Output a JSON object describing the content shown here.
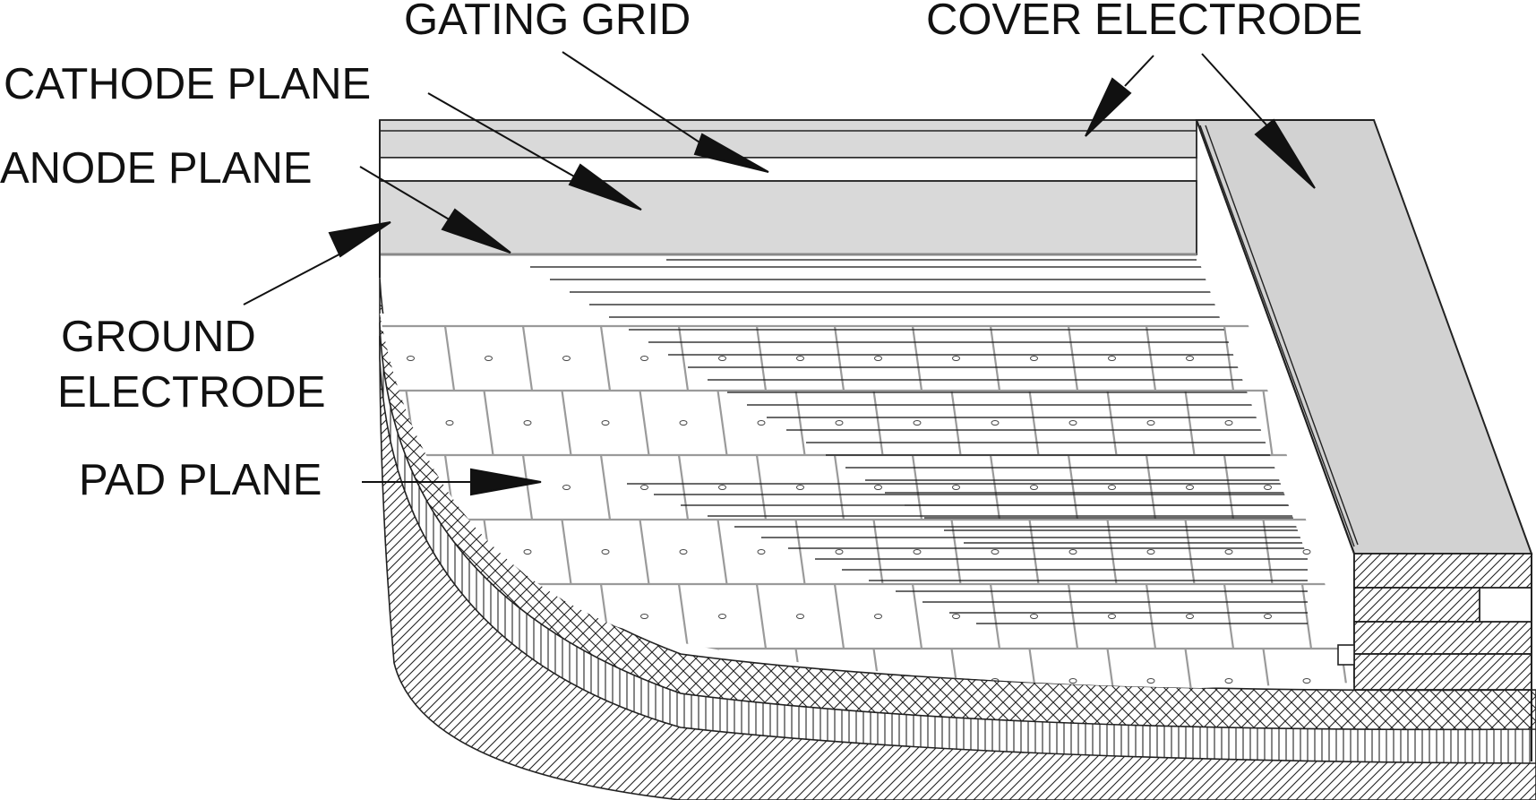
{
  "labels": {
    "gating_grid": "GATING GRID",
    "cover_electrode": "COVER ELECTRODE",
    "cathode_plane": "CATHODE PLANE",
    "anode_plane": "ANODE PLANE",
    "ground_electrode_line1": "GROUND",
    "ground_electrode_line2": "ELECTRODE",
    "pad_plane": "PAD PLANE"
  },
  "colors": {
    "ink": "#111111",
    "electrode_fill": "#d9d9d9",
    "pad_grid": "#9a9a9a",
    "background": "#ffffff"
  },
  "pad_grid": {
    "rows": 6,
    "columns": 12
  }
}
